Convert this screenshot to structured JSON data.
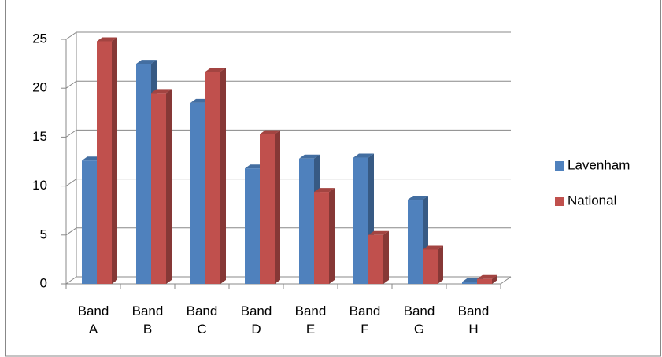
{
  "chart_data": {
    "type": "bar",
    "categories": [
      "Band A",
      "Band B",
      "Band C",
      "Band D",
      "Band E",
      "Band F",
      "Band G",
      "Band H"
    ],
    "series": [
      {
        "name": "Lavenham",
        "color": "#4f81bd",
        "values": [
          12.6,
          22.5,
          18.5,
          11.8,
          12.8,
          12.9,
          8.6,
          0.2
        ]
      },
      {
        "name": "National",
        "color": "#c0504d",
        "values": [
          24.8,
          19.5,
          21.7,
          15.3,
          9.4,
          5.0,
          3.5,
          0.5
        ]
      }
    ],
    "ylim": [
      0,
      25
    ],
    "yticks": [
      0,
      5,
      10,
      15,
      20,
      25
    ],
    "grid": true,
    "legend": "right"
  }
}
